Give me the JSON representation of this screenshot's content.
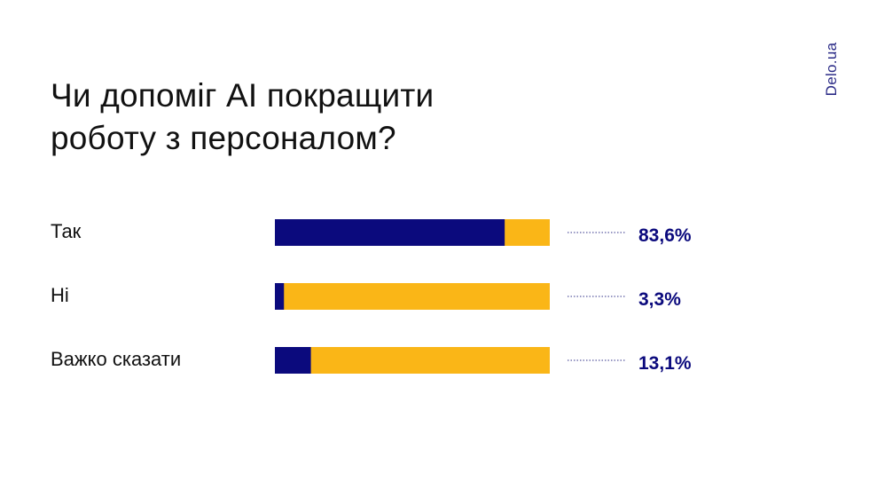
{
  "title": {
    "line1": "Чи допоміг AI покращити",
    "line2": "роботу з персоналом?"
  },
  "watermark": "Delo.ua",
  "colors": {
    "primary": "#0b0a7d",
    "secondary": "#fab617",
    "leader": "#5a5aa0",
    "value_text": "#0b0a7d"
  },
  "chart_data": {
    "type": "bar",
    "orientation": "horizontal",
    "stacked": true,
    "title": "Чи допоміг AI покращити роботу з персоналом?",
    "categories": [
      "Так",
      "Ні",
      "Важко сказати"
    ],
    "values": [
      83.6,
      3.3,
      13.1
    ],
    "value_labels": [
      "83,6%",
      "3,3%",
      "13,1%"
    ],
    "unit": "%",
    "xlim": [
      0,
      100
    ],
    "grid": false,
    "legend": "none"
  }
}
